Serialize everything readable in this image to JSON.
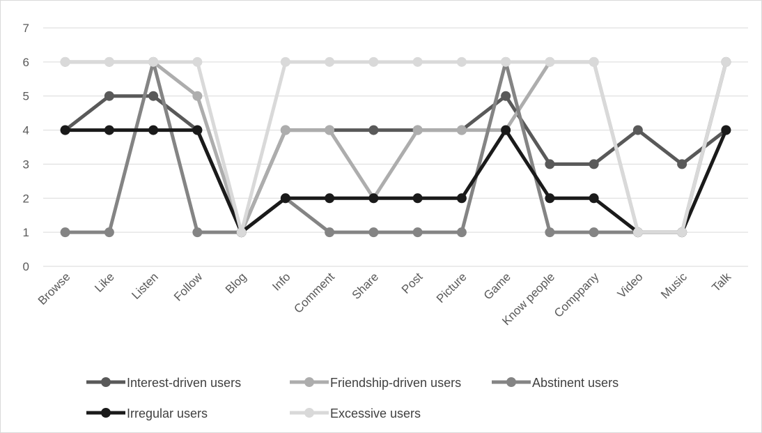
{
  "chart_data": {
    "type": "line",
    "title": "",
    "xlabel": "",
    "ylabel": "",
    "categories": [
      "Browse",
      "Like",
      "Listen",
      "Follow",
      "Blog",
      "Info",
      "Comment",
      "Share",
      "Post",
      "Picture",
      "Game",
      "Know people",
      "Comppany",
      "Video",
      "Music",
      "Talk"
    ],
    "ylim": [
      0,
      7
    ],
    "yticks": [
      "0",
      "1",
      "2",
      "3",
      "4",
      "5",
      "6",
      "7"
    ],
    "grid": true,
    "legend": "bottom",
    "series": [
      {
        "name": "Interest-driven users",
        "color": "#595959",
        "values": [
          4,
          5,
          5,
          4,
          1,
          4,
          4,
          4,
          4,
          4,
          5,
          3,
          3,
          4,
          3,
          4
        ]
      },
      {
        "name": "Friendship-driven users",
        "color": "#adadad",
        "values": [
          6,
          6,
          6,
          5,
          1,
          4,
          4,
          2,
          4,
          4,
          4,
          6,
          6,
          1,
          1,
          6
        ]
      },
      {
        "name": "Abstinent users",
        "color": "#848484",
        "values": [
          1,
          1,
          6,
          1,
          1,
          2,
          1,
          1,
          1,
          1,
          6,
          1,
          1,
          1,
          1,
          6
        ]
      },
      {
        "name": "Irregular users",
        "color": "#1a1a1a",
        "values": [
          4,
          4,
          4,
          4,
          1,
          2,
          2,
          2,
          2,
          2,
          4,
          2,
          2,
          1,
          1,
          4
        ]
      },
      {
        "name": "Excessive users",
        "color": "#d9d9d9",
        "values": [
          6,
          6,
          6,
          6,
          1,
          6,
          6,
          6,
          6,
          6,
          6,
          6,
          6,
          1,
          1,
          6
        ]
      }
    ]
  }
}
